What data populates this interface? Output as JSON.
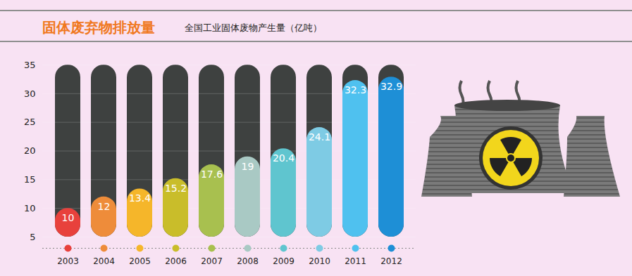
{
  "chart_data": {
    "type": "bar",
    "title": "固体废弃物排放量",
    "subtitle": "全国工业固体废物产生量（亿吨）",
    "categories": [
      "2003",
      "2004",
      "2005",
      "2006",
      "2007",
      "2008",
      "2009",
      "2010",
      "2011",
      "2012"
    ],
    "values": [
      10,
      12,
      13.4,
      15.2,
      17.6,
      19,
      20.4,
      24.1,
      32.3,
      32.9
    ],
    "colors": [
      "#e8413c",
      "#ee8c3a",
      "#f5b62a",
      "#c9bd2a",
      "#a8c04f",
      "#a9c9c4",
      "#5fc5cf",
      "#7ecbe4",
      "#4fc1ef",
      "#1e8fd6"
    ],
    "ylim": [
      5,
      35
    ],
    "yticks": [
      5,
      10,
      15,
      20,
      25,
      30,
      35
    ],
    "grid": true,
    "data_labels": true
  }
}
